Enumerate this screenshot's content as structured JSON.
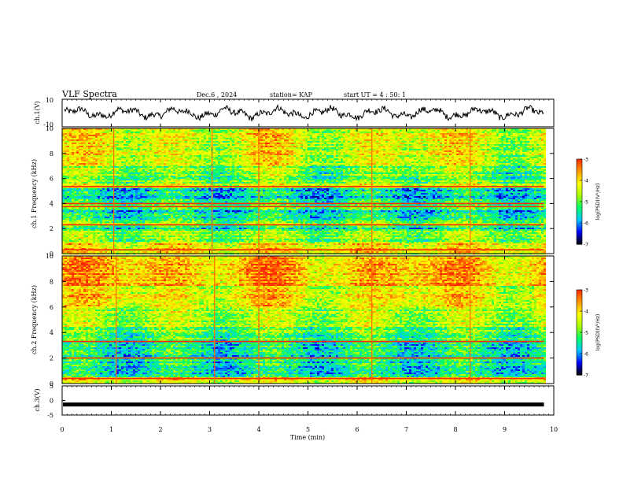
{
  "header": {
    "title": "VLF Spectra",
    "date": "Dec.6 , 2024",
    "station": "station= KAP",
    "start": "start UT = 4 : 50: 1"
  },
  "colors": {
    "axis": "#000000",
    "trace": "#000000",
    "colormap": [
      "#000000",
      "#0000ff",
      "#00c8ff",
      "#00ff66",
      "#aaff00",
      "#ffff00",
      "#ff9900",
      "#ff2a00",
      "#ffffff"
    ]
  },
  "chart_data": [
    {
      "type": "line",
      "name": "ch1-waveform",
      "ylabel": "ch.1(V)",
      "xlim": [
        0,
        10
      ],
      "ylim": [
        -10,
        10
      ],
      "yticks": [
        "10",
        "-10"
      ],
      "x_extent_min": 9.8,
      "note": "noisy waveform roughly between -5 and 5 V"
    },
    {
      "type": "heatmap",
      "name": "ch1-spectrogram",
      "ylabel": "ch.1 Frequency (kHz)",
      "xlim": [
        0,
        10
      ],
      "ylim": [
        0,
        10
      ],
      "yticks": [
        "0",
        "2",
        "4",
        "6",
        "8",
        "10"
      ],
      "colorbar": {
        "label": "log(PSD)(V²/Hz)",
        "min": -7,
        "max": -3,
        "ticks": [
          "-3",
          "-4",
          "-5",
          "-6",
          "-7"
        ]
      },
      "bands": [
        {
          "f0": 0.0,
          "f1": 0.8,
          "level": -4.1
        },
        {
          "f0": 0.8,
          "f1": 1.8,
          "level": -4.8
        },
        {
          "f0": 1.8,
          "f1": 2.2,
          "level": -5.5
        },
        {
          "f0": 2.2,
          "f1": 2.7,
          "level": -4.9
        },
        {
          "f0": 2.7,
          "f1": 3.4,
          "level": -5.6
        },
        {
          "f0": 3.4,
          "f1": 4.4,
          "level": -5.3
        },
        {
          "f0": 4.4,
          "f1": 5.2,
          "level": -5.7
        },
        {
          "f0": 5.2,
          "f1": 5.6,
          "level": -4.6
        },
        {
          "f0": 5.6,
          "f1": 7.0,
          "level": -4.9
        },
        {
          "f0": 7.0,
          "f1": 9.0,
          "level": -4.4
        },
        {
          "f0": 9.0,
          "f1": 10.0,
          "level": -4.3
        }
      ],
      "lines_khz": [
        5.35,
        4.0,
        3.75,
        2.3,
        0.3
      ],
      "spikes_min": [
        1.05,
        3.05,
        4.0,
        6.3,
        8.3
      ]
    },
    {
      "type": "heatmap",
      "name": "ch2-spectrogram",
      "ylabel": "ch.2 Frequency (kHz)",
      "xlim": [
        0,
        10
      ],
      "ylim": [
        0,
        10
      ],
      "yticks": [
        "0",
        "2",
        "4",
        "6",
        "8",
        "10"
      ],
      "colorbar": {
        "label": "log(PSD)(V²/Hz)",
        "min": -7,
        "max": -3,
        "ticks": [
          "-3",
          "-4",
          "-5",
          "-6",
          "-7"
        ]
      },
      "bands": [
        {
          "f0": 0.0,
          "f1": 0.5,
          "level": -4.2
        },
        {
          "f0": 0.5,
          "f1": 2.0,
          "level": -5.5
        },
        {
          "f0": 2.0,
          "f1": 3.4,
          "level": -5.6
        },
        {
          "f0": 3.4,
          "f1": 4.4,
          "level": -5.0
        },
        {
          "f0": 4.4,
          "f1": 6.0,
          "level": -4.6
        },
        {
          "f0": 6.0,
          "f1": 7.6,
          "level": -4.2
        },
        {
          "f0": 7.6,
          "f1": 10.0,
          "level": -3.8
        }
      ],
      "lines_khz": [
        3.3,
        2.0,
        0.4
      ],
      "spikes_min": [
        1.1,
        3.1,
        4.0,
        6.3,
        8.3
      ]
    },
    {
      "type": "line",
      "name": "ch3-waveform",
      "ylabel": "ch.3(V)",
      "xlabel": "Time (min)",
      "xlim": [
        0,
        10
      ],
      "ylim": [
        -5,
        5
      ],
      "yticks": [
        "5",
        "0",
        "-5"
      ],
      "xticks": [
        "0",
        "1",
        "2",
        "3",
        "4",
        "5",
        "6",
        "7",
        "8",
        "9",
        "10"
      ],
      "note": "nearly flat thick trace close to -1 V"
    }
  ]
}
